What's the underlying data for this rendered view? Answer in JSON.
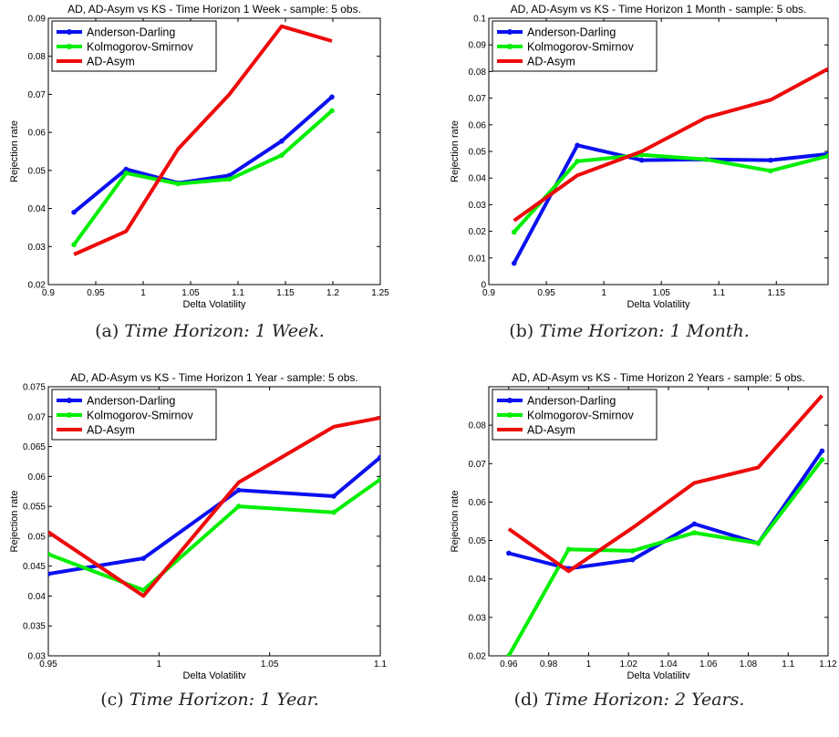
{
  "figure": {
    "colors": {
      "Anderson-Darling": "#0a10f0",
      "Kolmogorov-Smirnov": "#00ee00",
      "AD-Asym": "#ee0a0a"
    }
  },
  "chart_data": [
    {
      "type": "line",
      "title": "AD, AD-Asym vs KS - Time Horizon 1 Week - sample: 5 obs.",
      "xlabel": "Delta Volatility",
      "ylabel": "Rejection rate",
      "xlim": [
        0.9,
        1.25
      ],
      "ylim": [
        0.02,
        0.09
      ],
      "xticks": [
        "0.9",
        "0.95",
        "1",
        "1.05",
        "1.1",
        "1.15",
        "1.2",
        "1.25"
      ],
      "yticks": [
        "0.02",
        "0.03",
        "0.04",
        "0.05",
        "0.06",
        "0.07",
        "0.08",
        "0.09"
      ],
      "legend_position": "top-left",
      "x": [
        0.927,
        0.982,
        1.037,
        1.091,
        1.146,
        1.199
      ],
      "series": [
        {
          "name": "Anderson-Darling",
          "values": [
            0.039,
            0.0503,
            0.0467,
            0.0487,
            0.0577,
            0.0693
          ]
        },
        {
          "name": "Kolmogorov-Smirnov",
          "values": [
            0.0305,
            0.0493,
            0.0465,
            0.0477,
            0.054,
            0.0657
          ]
        },
        {
          "name": "AD-Asym",
          "values": [
            0.0279,
            0.034,
            0.0557,
            0.07,
            0.0879,
            0.084
          ]
        }
      ],
      "caption_label": "(a)",
      "caption_text": "Time Horizon: 1 Week."
    },
    {
      "type": "line",
      "title": "AD, AD-Asym vs KS - Time Horizon 1 Month - sample: 5 obs.",
      "xlabel": "Delta Volatility",
      "ylabel": "Rejection rate",
      "xlim": [
        0.9,
        1.195
      ],
      "ylim": [
        0,
        0.1
      ],
      "xticks": [
        "0.9",
        "0.95",
        "1",
        "1.05",
        "1.1",
        "1.15"
      ],
      "xtick_values": [
        0.9,
        0.95,
        1.0,
        1.05,
        1.1,
        1.15
      ],
      "yticks": [
        "0",
        "0.01",
        "0.02",
        "0.03",
        "0.04",
        "0.05",
        "0.06",
        "0.07",
        "0.08",
        "0.09",
        "0.1"
      ],
      "legend_position": "top-left",
      "x": [
        0.922,
        0.977,
        1.033,
        1.089,
        1.145,
        1.195
      ],
      "series": [
        {
          "name": "Anderson-Darling",
          "values": [
            0.008,
            0.0523,
            0.0467,
            0.047,
            0.0467,
            0.049
          ]
        },
        {
          "name": "Kolmogorov-Smirnov",
          "values": [
            0.0197,
            0.0463,
            0.0487,
            0.047,
            0.0427,
            0.0483
          ]
        },
        {
          "name": "AD-Asym",
          "values": [
            0.024,
            0.041,
            0.05,
            0.0627,
            0.0693,
            0.081
          ]
        }
      ],
      "caption_label": "(b)",
      "caption_text": "Time Horizon: 1 Month."
    },
    {
      "type": "line",
      "title": "AD, AD-Asym vs KS - Time Horizon 1 Year - sample: 5 obs.",
      "xlabel": "Delta Volatility",
      "ylabel": "Rejection rate",
      "xlim": [
        0.95,
        1.1
      ],
      "ylim": [
        0.03,
        0.075
      ],
      "xticks": [
        "0.95",
        "1",
        "1.05",
        "1.1"
      ],
      "yticks": [
        "0.03",
        "0.035",
        "0.04",
        "0.045",
        "0.05",
        "0.055",
        "0.06",
        "0.065",
        "0.07",
        "0.075"
      ],
      "legend_position": "top-left",
      "x": [
        0.95,
        0.993,
        1.036,
        1.079,
        1.1
      ],
      "series": [
        {
          "name": "Anderson-Darling",
          "values": [
            0.0437,
            0.0463,
            0.0577,
            0.0567,
            0.0632
          ]
        },
        {
          "name": "Kolmogorov-Smirnov",
          "values": [
            0.047,
            0.041,
            0.055,
            0.054,
            0.0595
          ]
        },
        {
          "name": "AD-Asym",
          "values": [
            0.0507,
            0.04,
            0.059,
            0.0683,
            0.0698
          ]
        }
      ],
      "caption_label": "(c)",
      "caption_text": "Time Horizon: 1 Year."
    },
    {
      "type": "line",
      "title": "AD, AD-Asym vs KS - Time Horizon 2 Years - sample: 5 obs.",
      "xlabel": "Delta Volatility",
      "ylabel": "Rejection rate",
      "xlim": [
        0.95,
        1.12
      ],
      "ylim": [
        0.02,
        0.09
      ],
      "xticks": [
        "0.96",
        "0.98",
        "1",
        "1.02",
        "1.04",
        "1.06",
        "1.08",
        "1.1",
        "1.12"
      ],
      "xtick_values": [
        0.96,
        0.98,
        1.0,
        1.02,
        1.04,
        1.06,
        1.08,
        1.1,
        1.12
      ],
      "yticks": [
        "0.02",
        "0.03",
        "0.04",
        "0.05",
        "0.06",
        "0.07",
        "0.08"
      ],
      "legend_position": "top-left",
      "x": [
        0.96,
        0.99,
        1.022,
        1.053,
        1.085,
        1.117
      ],
      "series": [
        {
          "name": "Anderson-Darling",
          "values": [
            0.0467,
            0.0427,
            0.045,
            0.0543,
            0.0493,
            0.0733
          ]
        },
        {
          "name": "Kolmogorov-Smirnov",
          "values": [
            0.02,
            0.0477,
            0.0473,
            0.052,
            0.0493,
            0.071
          ]
        },
        {
          "name": "AD-Asym",
          "values": [
            0.053,
            0.042,
            0.0533,
            0.065,
            0.069,
            0.0877
          ]
        }
      ],
      "caption_label": "(d)",
      "caption_text": "Time Horizon: 2 Years."
    }
  ]
}
